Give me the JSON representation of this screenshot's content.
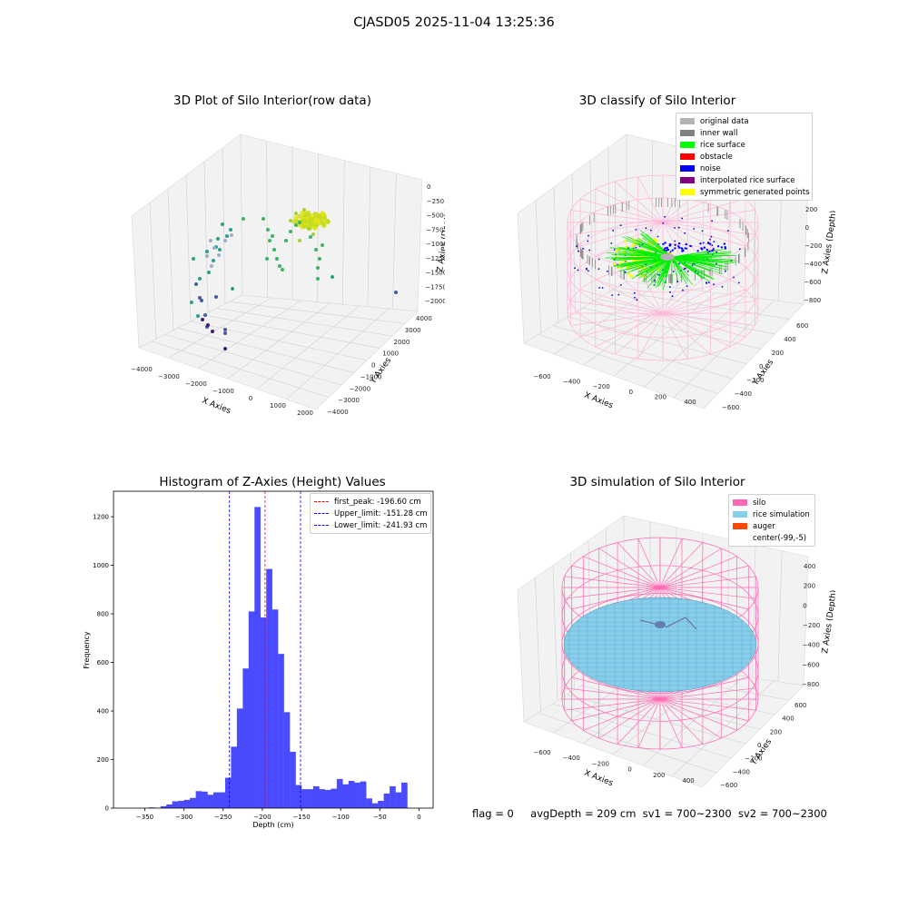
{
  "figure": {
    "suptitle": "CJASD05 2025-11-04 13:25:36",
    "status_line": {
      "flag": "flag = 0",
      "avg_depth": "avgDepth = 209 cm",
      "sv1": "sv1 = 700~2300",
      "sv2": "sv2 = 700~2300"
    }
  },
  "chart_data": [
    {
      "type": "scatter",
      "projection": "3d",
      "title": "3D Plot of Silo Interior(row data)",
      "xlabel": "X Axies",
      "ylabel": "Y Axies",
      "zlabel": "Z Axies (Depth)",
      "x_ticks": [
        "−4000",
        "−3000",
        "−2000",
        "−1000",
        "0",
        "1000",
        "2000"
      ],
      "y_ticks": [
        "−4000",
        "−3000",
        "−2000",
        "−1000",
        "0",
        "1000",
        "2000",
        "3000",
        "4000"
      ],
      "z_ticks": [
        "0",
        "−250",
        "−500",
        "−750",
        "−1000",
        "−1250",
        "−1500",
        "−1750",
        "−2000"
      ],
      "xlim": [
        -4500,
        2000
      ],
      "ylim": [
        -4500,
        4500
      ],
      "zlim": [
        -2100,
        100
      ],
      "colormap": "viridis (colored by depth)",
      "grid": true
    },
    {
      "type": "scatter",
      "projection": "3d",
      "title": "3D classify of Silo Interior",
      "xlabel": "X Axies",
      "ylabel": "Y Axies",
      "zlabel": "Z Axies (Depth)",
      "x_ticks": [
        "−600",
        "−400",
        "−200",
        "0",
        "200",
        "400"
      ],
      "y_ticks": [
        "−600",
        "−400",
        "−200",
        "0",
        "200",
        "400",
        "600"
      ],
      "z_ticks": [
        "200",
        "0",
        "−200",
        "−400",
        "−600",
        "−800"
      ],
      "xlim": [
        -700,
        500
      ],
      "ylim": [
        -700,
        700
      ],
      "zlim": [
        -900,
        250
      ],
      "legend_position": "top-right",
      "legend": [
        {
          "label": "original data",
          "color": "#b4b4b4"
        },
        {
          "label": "inner wall",
          "color": "#808080"
        },
        {
          "label": "rice surface",
          "color": "#00ff00"
        },
        {
          "label": "obstacle",
          "color": "#ff0000"
        },
        {
          "label": "noise",
          "color": "#0000ee"
        },
        {
          "label": "interpolated rice surface",
          "color": "#800080"
        },
        {
          "label": "symmetric generated points",
          "color": "#ffff00"
        }
      ],
      "grid": true
    },
    {
      "type": "bar",
      "title": "Histogram of Z-Axies (Height) Values",
      "xlabel": "Depth (cm)",
      "ylabel": "Frequency",
      "bin_width": 7.5,
      "bin_start": -345,
      "values": [
        3,
        0,
        8,
        15,
        28,
        30,
        34,
        42,
        70,
        68,
        55,
        65,
        65,
        125,
        253,
        410,
        575,
        810,
        1240,
        785,
        985,
        818,
        635,
        395,
        232,
        95,
        78,
        78,
        90,
        78,
        75,
        80,
        120,
        98,
        112,
        105,
        110,
        40,
        20,
        30,
        60,
        90,
        65,
        105
      ],
      "xlim": [
        -390,
        18
      ],
      "ylim": [
        0,
        1305
      ],
      "x_ticks": [
        -350,
        -300,
        -250,
        -200,
        -150,
        -100,
        -50,
        0
      ],
      "y_ticks": [
        0,
        200,
        400,
        600,
        800,
        1000,
        1200
      ],
      "bar_color": "#4a4aff",
      "vlines": [
        {
          "label": "first_peak: -196.60 cm",
          "x": -196.6,
          "color": "#ff0000"
        },
        {
          "label": "Upper_limit: -151.28 cm",
          "x": -151.28,
          "color": "#0000ff"
        },
        {
          "label": "Lower_limit: -241.93 cm",
          "x": -241.93,
          "color": "#0000ff"
        }
      ],
      "legend_position": "top-right",
      "grid": false
    },
    {
      "type": "surface",
      "projection": "3d",
      "title": "3D simulation of Silo Interior",
      "xlabel": "X Axies",
      "ylabel": "Y Axies",
      "zlabel": "Z Axies (Depth)",
      "x_ticks": [
        "−600",
        "−400",
        "−200",
        "0",
        "200",
        "400"
      ],
      "y_ticks": [
        "−600",
        "−400",
        "−200",
        "0",
        "200",
        "400",
        "600"
      ],
      "z_ticks": [
        "400",
        "200",
        "0",
        "−200",
        "−400",
        "−600",
        "−800"
      ],
      "xlim": [
        -700,
        500
      ],
      "ylim": [
        -700,
        700
      ],
      "zlim": [
        -900,
        450
      ],
      "legend_position": "top-right",
      "legend": [
        {
          "label": "silo",
          "color": "#ff69b4"
        },
        {
          "label": "rice simulation",
          "color": "#87ceeb"
        },
        {
          "label": "auger",
          "color": "#ff4500"
        },
        {
          "label": "center(-99,-5)",
          "color": ""
        }
      ],
      "grid": true
    }
  ]
}
